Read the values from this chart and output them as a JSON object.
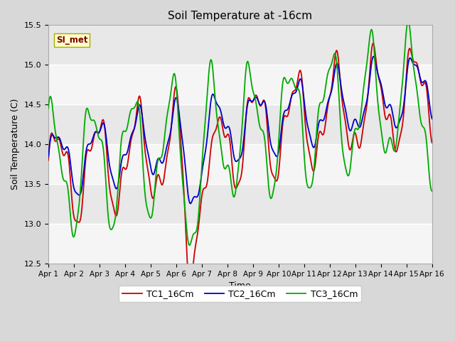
{
  "title": "Soil Temperature at -16cm",
  "xlabel": "Time",
  "ylabel": "Soil Temperature (C)",
  "ylim": [
    12.5,
    15.5
  ],
  "xlim": [
    0,
    15
  ],
  "xtick_labels": [
    "Apr 1",
    "Apr 2",
    "Apr 3",
    "Apr 4",
    "Apr 5",
    "Apr 6",
    "Apr 7",
    "Apr 8",
    "Apr 9",
    "Apr 10",
    "Apr 11",
    "Apr 12",
    "Apr 13",
    "Apr 14",
    "Apr 15",
    "Apr 16"
  ],
  "ytick_values": [
    12.5,
    13.0,
    13.5,
    14.0,
    14.5,
    15.0,
    15.5
  ],
  "annotation_text": "SI_met",
  "annotation_bg": "#ffffcc",
  "annotation_fg": "#800000",
  "fig_facecolor": "#d8d8d8",
  "axes_facecolor": "#e8e8e8",
  "tc1_color": "#cc0000",
  "tc2_color": "#0000cc",
  "tc3_color": "#00aa00",
  "linewidth": 1.3
}
